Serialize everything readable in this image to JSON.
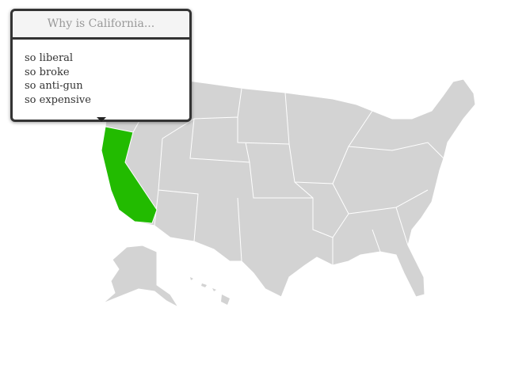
{
  "tooltip": {
    "title": "Why is California...",
    "items": [
      "so liberal",
      "so broke",
      "so anti-gun",
      "so expensive"
    ]
  },
  "map": {
    "highlighted_state": "California",
    "colors": {
      "highlight": "#22bb00",
      "default": "#d3d3d3",
      "border": "#ffffff"
    }
  }
}
